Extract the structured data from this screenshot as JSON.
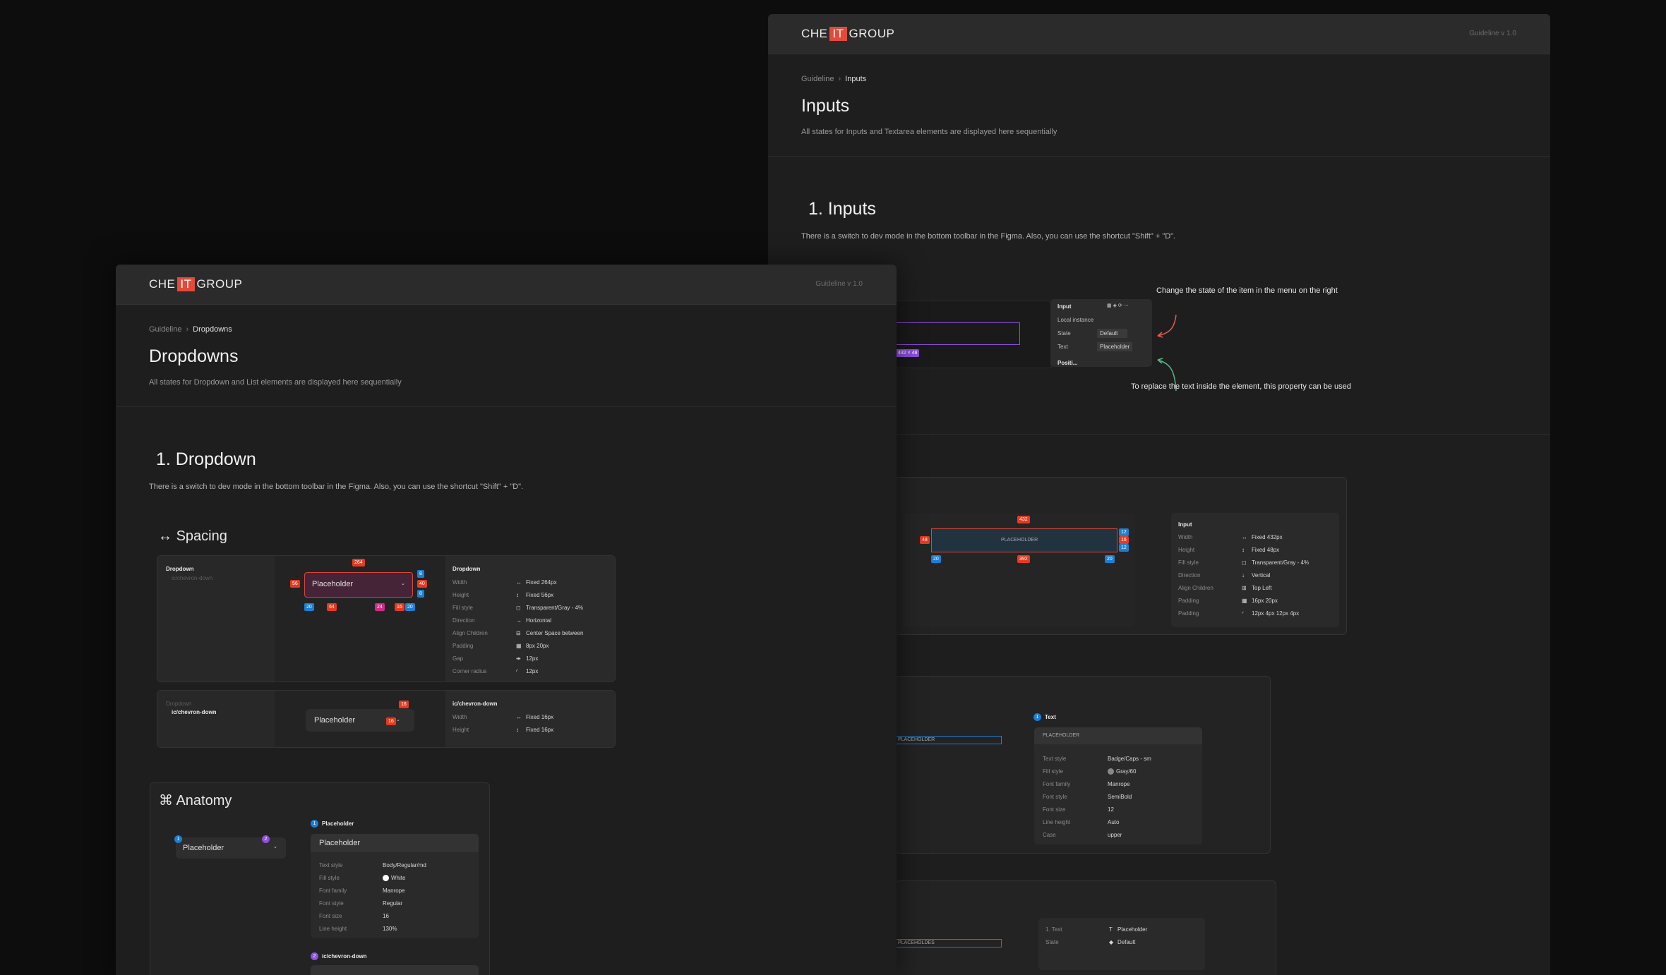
{
  "brand": {
    "pre": "CHE",
    "mid": "IT",
    "post": "GROUP"
  },
  "version": "Guideline v 1.0",
  "inputs_page": {
    "breadcrumb": {
      "root": "Guideline",
      "current": "Inputs"
    },
    "title": "Inputs",
    "subtitle": "All states for Inputs and Textarea elements are displayed here sequentially",
    "section_title": "1. Inputs",
    "section_text": "There is a switch to dev mode in the bottom toolbar in the Figma. Also, you can use the shortcut \"Shift\" + \"D\".",
    "figma_panel": {
      "title": "Input",
      "local_instance": "Local instance",
      "state_label": "State",
      "state_value": "Default",
      "text_label": "Text",
      "text_value": "Placeholder",
      "positioning": "Positi...",
      "size_tag": "432 × 48"
    },
    "annotations": {
      "top": "Change the state of the item in the menu on the right",
      "bottom": "To replace the text inside the element, this property can be used"
    },
    "spacing": {
      "field_placeholder": "PLACEHOLDER",
      "tags": {
        "top": "432",
        "left": "48",
        "right_a": "12",
        "right_b": "16",
        "right_c": "12",
        "bottom_left": "20",
        "bottom_mid": "392",
        "bottom_right": "20"
      },
      "panel_title": "Input",
      "rows": [
        {
          "label": "Width",
          "value": "Fixed 432px",
          "icon": "↔"
        },
        {
          "label": "Height",
          "value": "Fixed 48px",
          "icon": "↕"
        },
        {
          "label": "Fill style",
          "value": "Transparent/Gray - 4%",
          "icon": "◻"
        },
        {
          "label": "Direction",
          "value": "Vertical",
          "icon": "↓"
        },
        {
          "label": "Align Children",
          "value": "Top Left",
          "icon": "⊞"
        },
        {
          "label": "Padding",
          "value": "16px 20px",
          "icon": "▦"
        },
        {
          "label": "Padding",
          "value": "12px 4px 12px 4px",
          "icon": "◜"
        }
      ]
    },
    "text_card": {
      "dot": "1",
      "title": "Text",
      "placeholder": "PLACEHOLDER",
      "field_text": "PLACEHOLDER",
      "rows": [
        {
          "label": "Text style",
          "value": "Badge/Caps - sm"
        },
        {
          "label": "Fill style",
          "value": "Gray/60"
        },
        {
          "label": "Font family",
          "value": "Manrope"
        },
        {
          "label": "Font style",
          "value": "SemiBold"
        },
        {
          "label": "Font size",
          "value": "12"
        },
        {
          "label": "Line height",
          "value": "Auto"
        },
        {
          "label": "Case",
          "value": "upper"
        }
      ]
    },
    "props_card": {
      "field_text": "PLACEHOLDES",
      "rows": [
        {
          "label": "1. Text",
          "value": "Placeholder",
          "icon": "T"
        },
        {
          "label": "State",
          "value": "Default",
          "icon": "◆"
        }
      ]
    }
  },
  "dropdowns_page": {
    "breadcrumb": {
      "root": "Guideline",
      "current": "Dropdowns"
    },
    "title": "Dropdowns",
    "subtitle": "All states for Dropdown and List elements are displayed here sequentially",
    "section_title": "1. Dropdown",
    "section_text": "There is a switch to dev mode in the bottom toolbar in the Figma. Also, you can use the shortcut \"Shift\" + \"D\".",
    "spacing": {
      "heading": "Spacing",
      "tree": {
        "node": "Dropdown",
        "child": "ic/chevron-down"
      },
      "field_placeholder": "Placeholder",
      "tags": {
        "top": "264",
        "left": "56",
        "right": "40",
        "r1": "8",
        "r2": "8",
        "b1": "20",
        "b2": "64",
        "b3": "24",
        "b4": "16",
        "b5": "20"
      },
      "panel_title": "Dropdown",
      "rows": [
        {
          "label": "Width",
          "value": "Fixed 264px",
          "icon": "↔"
        },
        {
          "label": "Height",
          "value": "Fixed 56px",
          "icon": "↕"
        },
        {
          "label": "Fill style",
          "value": "Transparent/Gray - 4%",
          "icon": "◻"
        },
        {
          "label": "Direction",
          "value": "Horizontal",
          "icon": "→"
        },
        {
          "label": "Align Children",
          "value": "Center Space between",
          "icon": "⊟"
        },
        {
          "label": "Padding",
          "value": "8px 20px",
          "icon": "▦"
        },
        {
          "label": "Gap",
          "value": "12px",
          "icon": "⇹"
        },
        {
          "label": "Corner radius",
          "value": "12px",
          "icon": "◜"
        }
      ]
    },
    "chevron_card": {
      "tree": {
        "node": "Dropdown",
        "child": "ic/chevron-down"
      },
      "field_placeholder": "Placeholder",
      "tags": {
        "top": "16",
        "left": "16"
      },
      "panel_title": "ic/chevron-down",
      "rows": [
        {
          "label": "Width",
          "value": "Fixed 16px",
          "icon": "↔"
        },
        {
          "label": "Height",
          "value": "Fixed 16px",
          "icon": "↕"
        }
      ]
    },
    "anatomy": {
      "heading": "Anatomy",
      "field_placeholder": "Placeholder",
      "dot1": "1",
      "dot2": "2",
      "item1_title": "Placeholder",
      "preview_text": "Placeholder",
      "rows": [
        {
          "label": "Text style",
          "value": "Body/Regular/md"
        },
        {
          "label": "Fill style",
          "value": "White"
        },
        {
          "label": "Font family",
          "value": "Manrope"
        },
        {
          "label": "Font style",
          "value": "Regular"
        },
        {
          "label": "Font size",
          "value": "16"
        },
        {
          "label": "Line height",
          "value": "130%"
        }
      ],
      "item2_title": "ic/chevron-down"
    }
  },
  "colors": {
    "accent_red": "#e53a22",
    "accent_blue": "#1b7fd6",
    "accent_purple": "#8f4fe0",
    "logo_red": "#e24b3b"
  }
}
